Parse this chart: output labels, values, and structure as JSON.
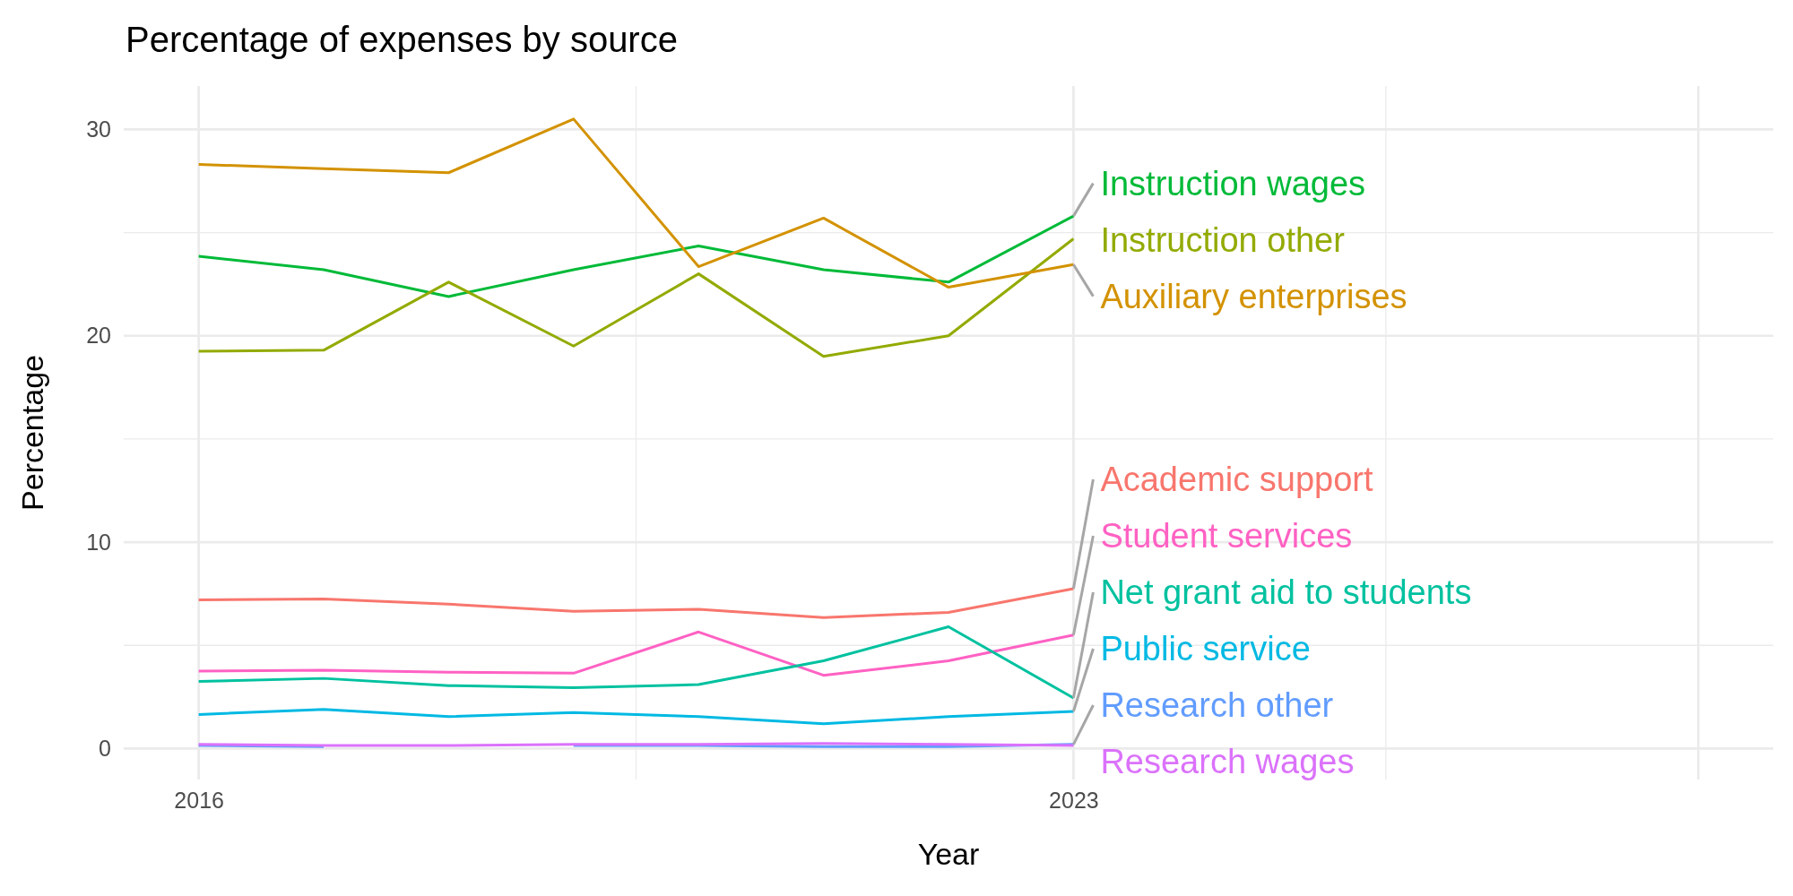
{
  "chart_data": {
    "type": "line",
    "title": "Percentage of expenses by source",
    "xlabel": "Year",
    "ylabel": "Percentage",
    "x": [
      2016,
      2017,
      2018,
      2019,
      2020,
      2021,
      2022,
      2023
    ],
    "xlim": [
      2015.4,
      2028.6
    ],
    "xticks": [
      2016,
      2023,
      {
        "value": 2028,
        "label": null
      }
    ],
    "ylim": [
      -1.5,
      32.1
    ],
    "yticks": [
      0,
      10,
      20,
      30
    ],
    "grid": true,
    "series": [
      {
        "name": "Instruction wages",
        "color": "#00ba38",
        "values": [
          23.85,
          23.2,
          21.9,
          23.2,
          24.35,
          23.2,
          22.6,
          25.8
        ]
      },
      {
        "name": "Instruction other",
        "color": "#93aa00",
        "values": [
          19.25,
          19.3,
          22.6,
          19.5,
          23.0,
          19.0,
          20.0,
          24.7
        ]
      },
      {
        "name": "Auxiliary enterprises",
        "color": "#d39200",
        "values": [
          28.3,
          28.1,
          27.9,
          30.5,
          23.35,
          25.7,
          22.35,
          23.45
        ]
      },
      {
        "name": "Academic support",
        "color": "#f8766d",
        "values": [
          7.2,
          7.25,
          7.0,
          6.65,
          6.75,
          6.35,
          6.6,
          7.75
        ]
      },
      {
        "name": "Student services",
        "color": "#ff61c3",
        "values": [
          3.75,
          3.8,
          3.7,
          3.65,
          5.65,
          3.55,
          4.25,
          5.5
        ]
      },
      {
        "name": "Net grant aid to students",
        "color": "#00c19f",
        "values": [
          3.25,
          3.4,
          3.05,
          2.95,
          3.1,
          4.25,
          5.9,
          2.45
        ]
      },
      {
        "name": "Public service",
        "color": "#00b9e3",
        "values": [
          1.65,
          1.9,
          1.55,
          1.75,
          1.55,
          1.2,
          1.55,
          1.8
        ]
      },
      {
        "name": "Research other",
        "color": "#619cff",
        "values": [
          0.15,
          0.1,
          null,
          0.15,
          0.15,
          0.1,
          0.1,
          0.2
        ]
      },
      {
        "name": "Research wages",
        "color": "#db72fb",
        "values": [
          0.2,
          0.15,
          0.15,
          0.2,
          0.2,
          0.25,
          0.2,
          0.15
        ]
      }
    ]
  }
}
